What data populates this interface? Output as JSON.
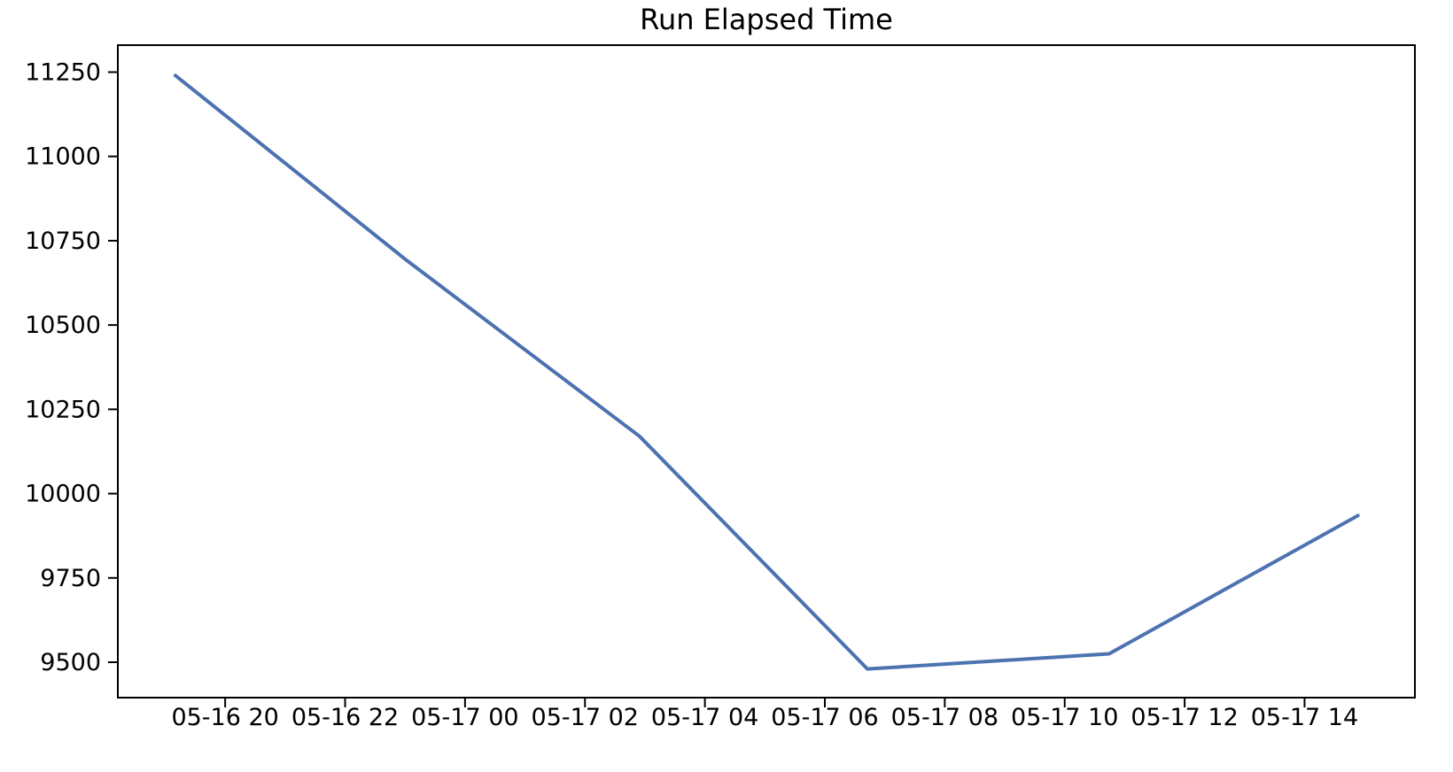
{
  "page": {
    "background": "#ffffff"
  },
  "chart_data": {
    "type": "line",
    "title": "Run Elapsed Time",
    "grid": false,
    "legend_position": "none",
    "x_axis": {
      "label": "",
      "unit": "hours since 05-16 20:00",
      "tick_labels": [
        "05-16 20",
        "05-16 22",
        "05-17 00",
        "05-17 02",
        "05-17 04",
        "05-17 06",
        "05-17 08",
        "05-17 10",
        "05-17 12",
        "05-17 14"
      ],
      "tick_hours": [
        0,
        2,
        4,
        6,
        8,
        10,
        12,
        14,
        16,
        18
      ],
      "xlim_hours": [
        -1.79,
        19.84
      ]
    },
    "y_axis": {
      "label": "",
      "tick_labels": [
        "9500",
        "9750",
        "10000",
        "10250",
        "10500",
        "10750",
        "11000",
        "11250"
      ],
      "tick_values": [
        9500,
        9750,
        10000,
        10250,
        10500,
        10750,
        11000,
        11250
      ],
      "ylim": [
        9395,
        11330
      ]
    },
    "series": [
      {
        "name": "Run Elapsed Time",
        "color": "#4C72B0",
        "line_width": 4,
        "x_hours": [
          -0.83,
          3.04,
          6.91,
          10.71,
          14.74,
          18.89
        ],
        "values": [
          11240,
          10690,
          10170,
          9480,
          9525,
          9935
        ]
      }
    ],
    "axis_color": "#000000"
  }
}
